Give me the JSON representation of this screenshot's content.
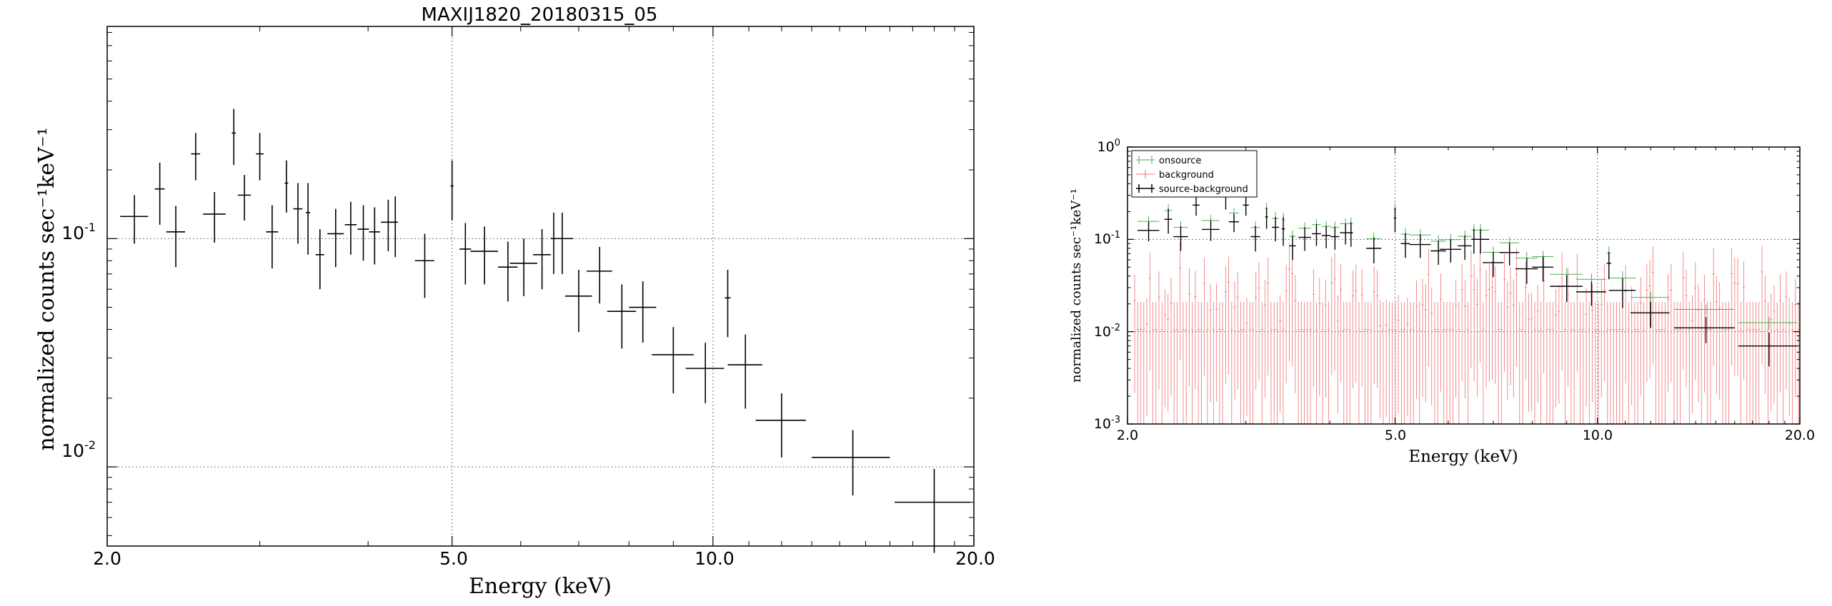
{
  "colors": {
    "source": "#000000",
    "onsource": "#4caf50",
    "background": "#f07070",
    "grid": "#777777"
  },
  "chart_data": [
    {
      "type": "scatter",
      "title": "MAXIJ1820_20180315_05",
      "xlabel": "Energy (keV)",
      "ylabel": "normalized counts sec⁻¹keV⁻¹",
      "xscale": "log",
      "yscale": "log",
      "xlim": [
        2.0,
        20.0
      ],
      "ylim": [
        0.0045,
        0.85
      ],
      "x_ticks": [
        "2.0",
        "5.0",
        "10.0",
        "20.0"
      ],
      "y_ticks": [
        {
          "base": "10",
          "exp": "-1"
        },
        {
          "base": "10",
          "exp": "-2"
        }
      ],
      "grid": true,
      "series": [
        {
          "points": [
            {
              "x": 2.15,
              "dx": 0.08,
              "y": 0.125,
              "dy": 0.03
            },
            {
              "x": 2.3,
              "dx": 0.03,
              "y": 0.165,
              "dy": 0.05
            },
            {
              "x": 2.4,
              "dx": 0.06,
              "y": 0.107,
              "dy": 0.032
            },
            {
              "x": 2.53,
              "dx": 0.03,
              "y": 0.235,
              "dy": 0.055
            },
            {
              "x": 2.66,
              "dx": 0.08,
              "y": 0.128,
              "dy": 0.032
            },
            {
              "x": 2.8,
              "dx": 0.015,
              "y": 0.29,
              "dy": 0.08
            },
            {
              "x": 2.88,
              "dx": 0.05,
              "y": 0.155,
              "dy": 0.035
            },
            {
              "x": 3.0,
              "dx": 0.03,
              "y": 0.235,
              "dy": 0.055
            },
            {
              "x": 3.1,
              "dx": 0.05,
              "y": 0.107,
              "dy": 0.033
            },
            {
              "x": 3.22,
              "dx": 0.015,
              "y": 0.175,
              "dy": 0.045
            },
            {
              "x": 3.32,
              "dx": 0.04,
              "y": 0.135,
              "dy": 0.04
            },
            {
              "x": 3.41,
              "dx": 0.02,
              "y": 0.13,
              "dy": 0.045
            },
            {
              "x": 3.52,
              "dx": 0.04,
              "y": 0.085,
              "dy": 0.025
            },
            {
              "x": 3.67,
              "dx": 0.08,
              "y": 0.105,
              "dy": 0.03
            },
            {
              "x": 3.82,
              "dx": 0.06,
              "y": 0.115,
              "dy": 0.03
            },
            {
              "x": 3.95,
              "dx": 0.06,
              "y": 0.11,
              "dy": 0.03
            },
            {
              "x": 4.07,
              "dx": 0.06,
              "y": 0.107,
              "dy": 0.03
            },
            {
              "x": 4.22,
              "dx": 0.08,
              "y": 0.118,
              "dy": 0.03
            },
            {
              "x": 4.3,
              "dx": 0.03,
              "y": 0.118,
              "dy": 0.035
            },
            {
              "x": 4.65,
              "dx": 0.12,
              "y": 0.08,
              "dy": 0.025
            },
            {
              "x": 5.0,
              "dx": 0.02,
              "y": 0.17,
              "dy": 0.05
            },
            {
              "x": 5.18,
              "dx": 0.08,
              "y": 0.09,
              "dy": 0.027
            },
            {
              "x": 5.45,
              "dx": 0.2,
              "y": 0.088,
              "dy": 0.025
            },
            {
              "x": 5.8,
              "dx": 0.15,
              "y": 0.075,
              "dy": 0.022
            },
            {
              "x": 6.05,
              "dx": 0.22,
              "y": 0.078,
              "dy": 0.022
            },
            {
              "x": 6.35,
              "dx": 0.15,
              "y": 0.085,
              "dy": 0.025
            },
            {
              "x": 6.55,
              "dx": 0.05,
              "y": 0.1,
              "dy": 0.03
            },
            {
              "x": 6.7,
              "dx": 0.2,
              "y": 0.1,
              "dy": 0.03
            },
            {
              "x": 7.0,
              "dx": 0.25,
              "y": 0.056,
              "dy": 0.017
            },
            {
              "x": 7.4,
              "dx": 0.25,
              "y": 0.072,
              "dy": 0.02
            },
            {
              "x": 7.85,
              "dx": 0.3,
              "y": 0.048,
              "dy": 0.015
            },
            {
              "x": 8.3,
              "dx": 0.3,
              "y": 0.05,
              "dy": 0.015
            },
            {
              "x": 9.0,
              "dx": 0.5,
              "y": 0.031,
              "dy": 0.01
            },
            {
              "x": 9.8,
              "dx": 0.5,
              "y": 0.027,
              "dy": 0.008
            },
            {
              "x": 10.4,
              "dx": 0.08,
              "y": 0.055,
              "dy": 0.018
            },
            {
              "x": 10.9,
              "dx": 0.5,
              "y": 0.028,
              "dy": 0.01
            },
            {
              "x": 12.0,
              "dx": 0.8,
              "y": 0.016,
              "dy": 0.005
            },
            {
              "x": 14.5,
              "dx": 1.5,
              "y": 0.011,
              "dy": 0.0035
            },
            {
              "x": 18.0,
              "dx": 1.8,
              "y": 0.007,
              "dy": 0.0028
            }
          ]
        }
      ]
    },
    {
      "type": "scatter",
      "title": "",
      "xlabel": "Energy (keV)",
      "ylabel": "normalized counts sec⁻¹keV⁻¹",
      "xscale": "log",
      "yscale": "log",
      "xlim": [
        2.0,
        20.0
      ],
      "ylim": [
        0.001,
        1.0
      ],
      "x_ticks": [
        "2.0",
        "5.0",
        "10.0",
        "20.0"
      ],
      "y_ticks": [
        {
          "base": "10",
          "exp": "0"
        },
        {
          "base": "10",
          "exp": "-1"
        },
        {
          "base": "10",
          "exp": "-2"
        },
        {
          "base": "10",
          "exp": "-3"
        }
      ],
      "grid": true,
      "legend": "top-left",
      "series": [
        {
          "name": "onsource",
          "color": "#4caf50"
        },
        {
          "name": "background",
          "color": "#f07070"
        },
        {
          "name": "source-background",
          "color": "#000000",
          "same_points_as": "left panel"
        }
      ]
    }
  ]
}
